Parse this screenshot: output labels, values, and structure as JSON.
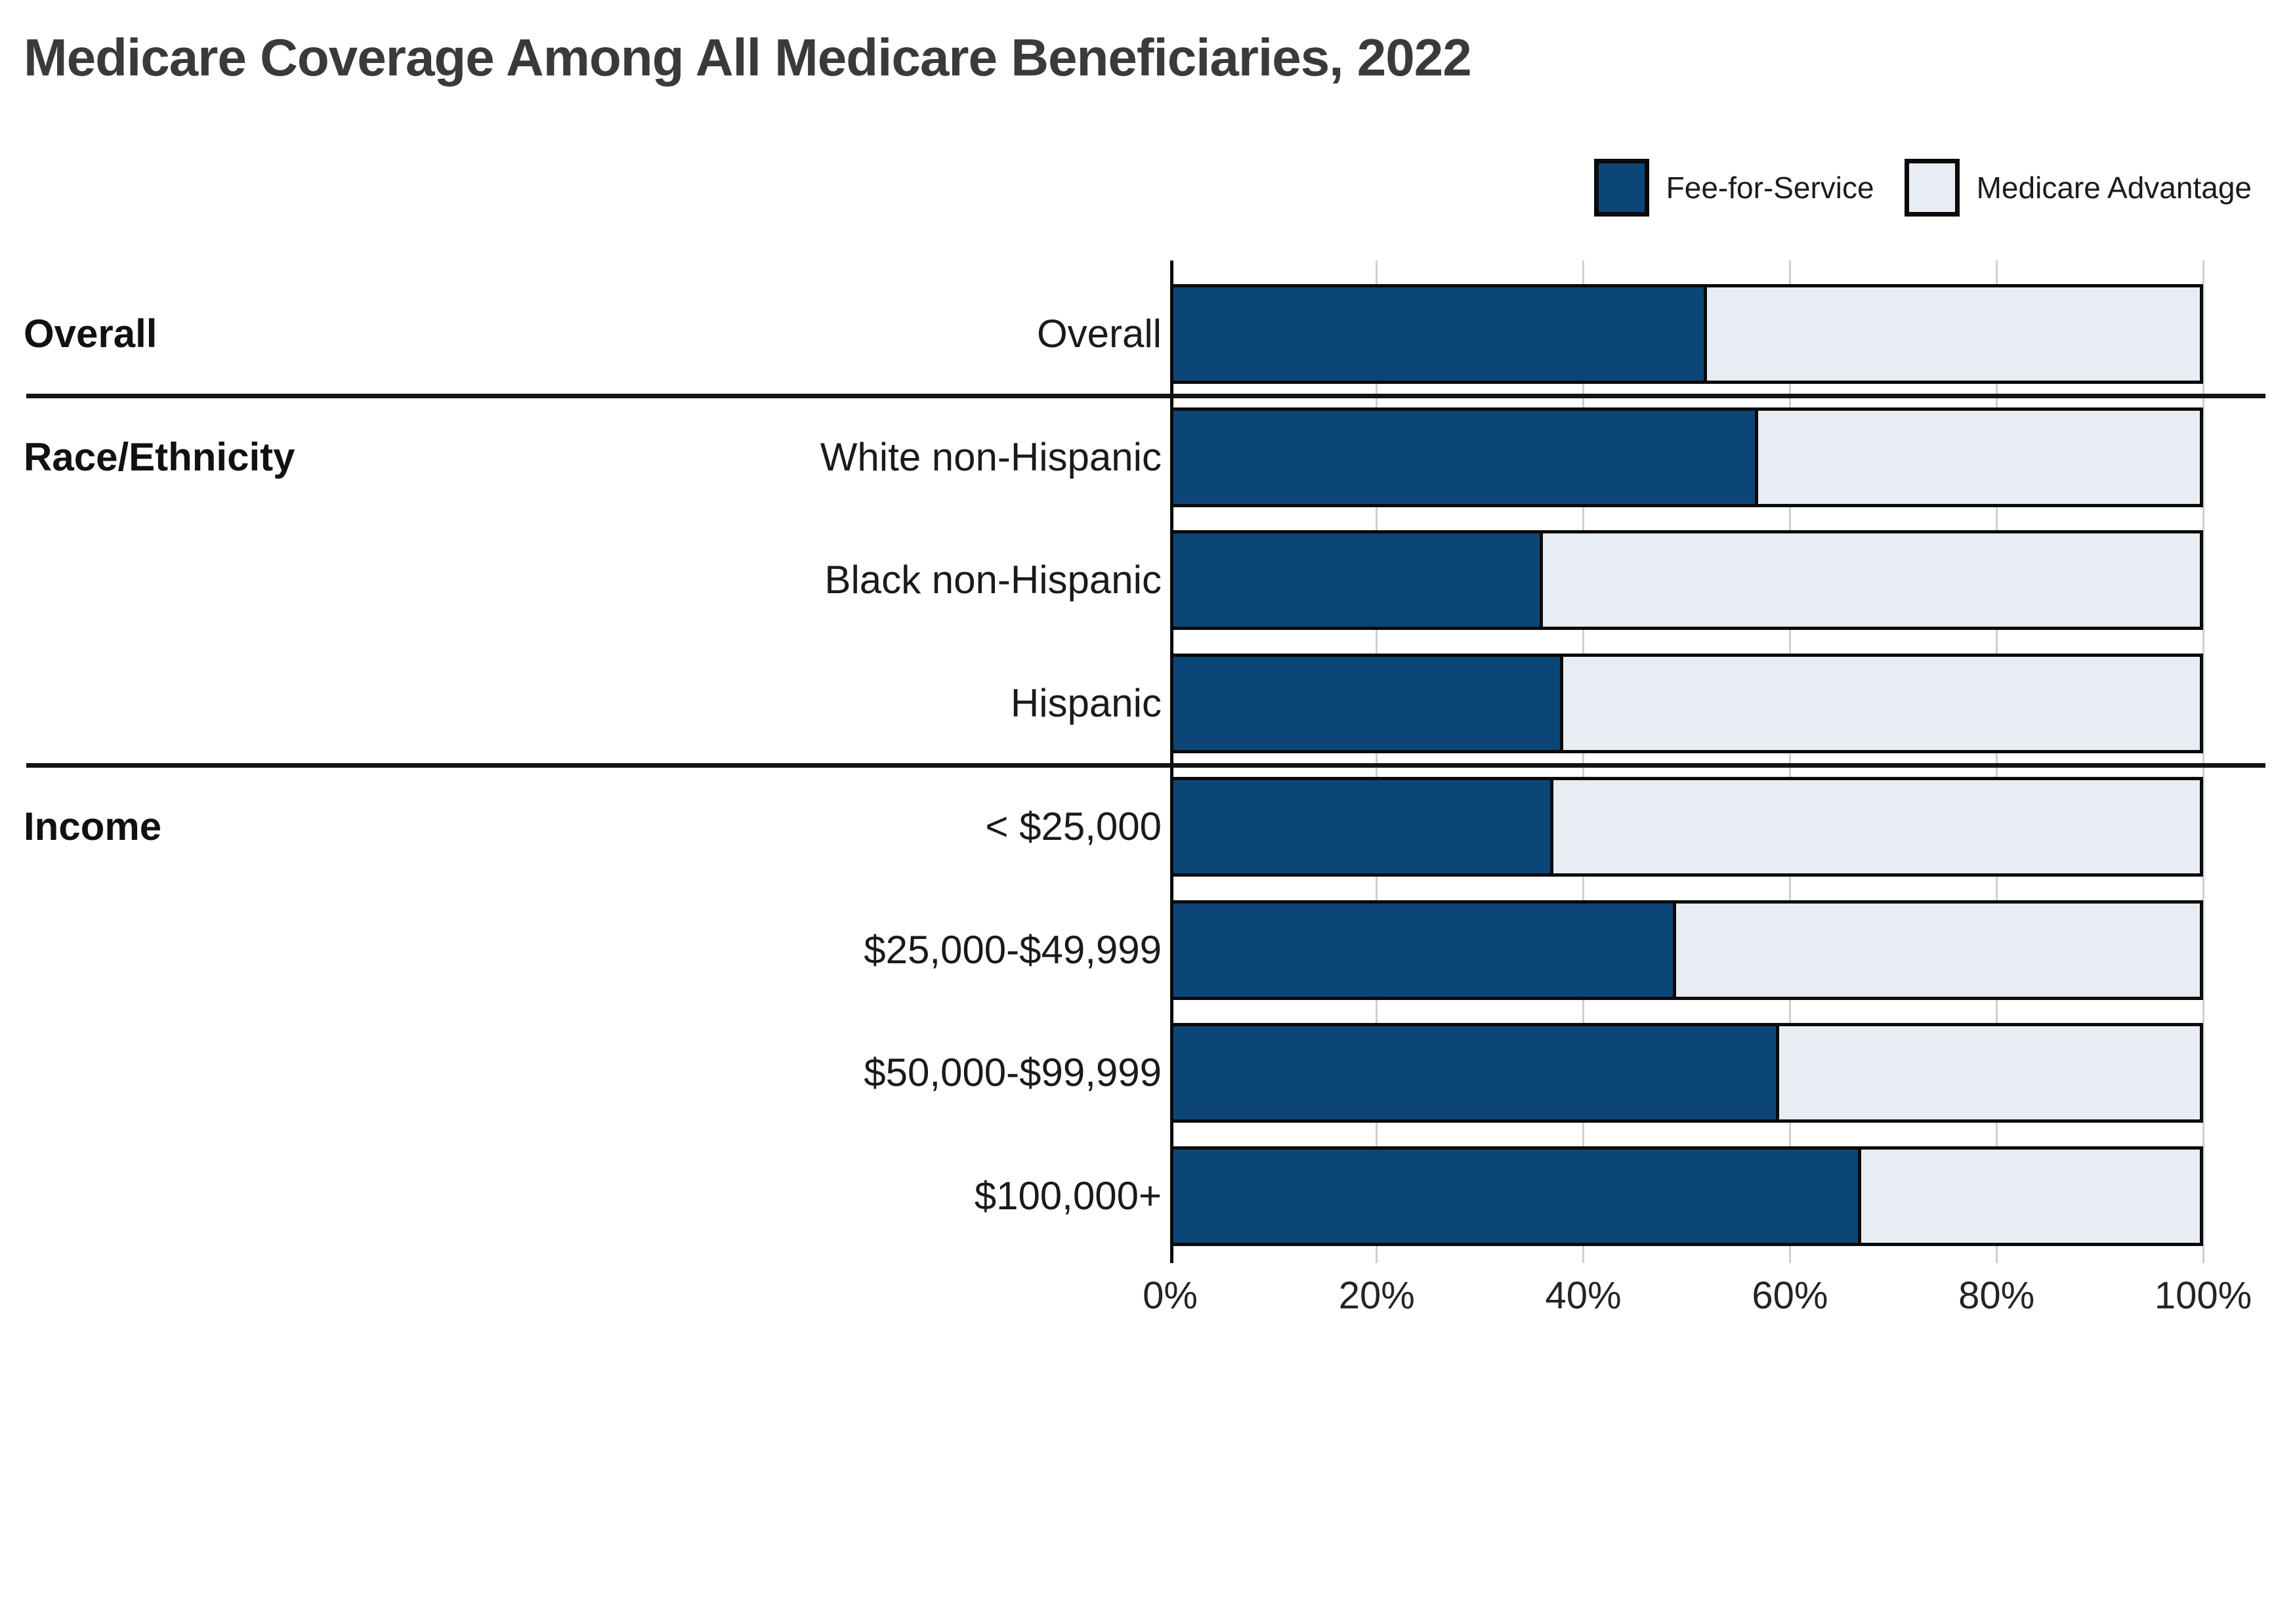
{
  "title": "Medicare Coverage Among All Medicare Beneficiaries, 2022",
  "colors": {
    "fee_for_service": "#0c4678",
    "medicare_advantage": "#e8ecf3",
    "bar_border": "#0a0a0a",
    "gridline": "#cfcfcf",
    "separator": "#141414",
    "title_text": "#3a3a3a",
    "axis_text": "#242424",
    "label_text": "#1a1a1a"
  },
  "legend": {
    "items": [
      {
        "label": "Fee-for-Service"
      },
      {
        "label": "Medicare Advantage"
      }
    ]
  },
  "chart_data": {
    "type": "bar",
    "orientation": "horizontal",
    "stacked": true,
    "grid": true,
    "legend_position": "top-right",
    "xlim": [
      0,
      100
    ],
    "x_ticks": [
      "0%",
      "20%",
      "40%",
      "60%",
      "80%",
      "100%"
    ],
    "x_tick_values": [
      0,
      20,
      40,
      60,
      80,
      100
    ],
    "series_names": [
      "Fee-for-Service",
      "Medicare Advantage"
    ],
    "groups": [
      {
        "label": "Overall",
        "rows": [
          {
            "label": "Overall",
            "fee_for_service": 52,
            "medicare_advantage": 48
          }
        ]
      },
      {
        "label": "Race/Ethnicity",
        "rows": [
          {
            "label": "White non-Hispanic",
            "fee_for_service": 57,
            "medicare_advantage": 43
          },
          {
            "label": "Black non-Hispanic",
            "fee_for_service": 36,
            "medicare_advantage": 64
          },
          {
            "label": "Hispanic",
            "fee_for_service": 38,
            "medicare_advantage": 62
          }
        ]
      },
      {
        "label": "Income",
        "rows": [
          {
            "label": "< $25,000",
            "fee_for_service": 37,
            "medicare_advantage": 63
          },
          {
            "label": "$25,000-$49,999",
            "fee_for_service": 49,
            "medicare_advantage": 51
          },
          {
            "label": "$50,000-$99,999",
            "fee_for_service": 59,
            "medicare_advantage": 41
          },
          {
            "label": "$100,000+",
            "fee_for_service": 67,
            "medicare_advantage": 33
          }
        ]
      }
    ]
  }
}
